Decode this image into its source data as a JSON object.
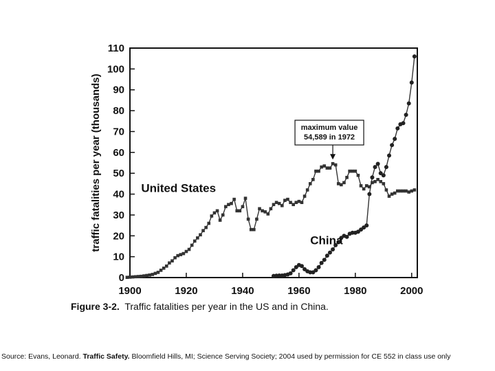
{
  "chart_data": {
    "type": "line",
    "ylabel": "traffic fatalities per year (thousands)",
    "xlim": [
      1900,
      2002
    ],
    "ylim": [
      0,
      110
    ],
    "x_ticks": [
      1900,
      1920,
      1940,
      1960,
      1980,
      2000
    ],
    "y_ticks": [
      0,
      10,
      20,
      30,
      40,
      50,
      60,
      70,
      80,
      90,
      100,
      110
    ],
    "grid": false,
    "series": [
      {
        "name": "United States",
        "marker": "square",
        "x": [
          1899,
          1900,
          1901,
          1902,
          1903,
          1904,
          1905,
          1906,
          1907,
          1908,
          1909,
          1910,
          1911,
          1912,
          1913,
          1914,
          1915,
          1916,
          1917,
          1918,
          1919,
          1920,
          1921,
          1922,
          1923,
          1924,
          1925,
          1926,
          1927,
          1928,
          1929,
          1930,
          1931,
          1932,
          1933,
          1934,
          1935,
          1936,
          1937,
          1938,
          1939,
          1940,
          1941,
          1942,
          1943,
          1944,
          1945,
          1946,
          1947,
          1948,
          1949,
          1950,
          1951,
          1952,
          1953,
          1954,
          1955,
          1956,
          1957,
          1958,
          1959,
          1960,
          1961,
          1962,
          1963,
          1964,
          1965,
          1966,
          1967,
          1968,
          1969,
          1970,
          1971,
          1972,
          1973,
          1974,
          1975,
          1976,
          1977,
          1978,
          1979,
          1980,
          1981,
          1982,
          1983,
          1984,
          1985,
          1986,
          1987,
          1988,
          1989,
          1990,
          1991,
          1992,
          1993,
          1994,
          1995,
          1996,
          1997,
          1998,
          1999,
          2000,
          2001
        ],
        "y": [
          0.1,
          0.2,
          0.3,
          0.4,
          0.5,
          0.6,
          0.8,
          1.0,
          1.2,
          1.5,
          2.0,
          2.5,
          3.5,
          4.5,
          5.5,
          7.0,
          8.0,
          9.5,
          10.5,
          11.0,
          11.5,
          12.5,
          13.5,
          15.5,
          17.5,
          19.0,
          20.5,
          22.5,
          24.0,
          26.0,
          29.5,
          31.0,
          32.0,
          27.5,
          30.0,
          34.0,
          35.0,
          35.5,
          37.5,
          32.0,
          32.0,
          34.0,
          38.0,
          28.0,
          23.0,
          23.0,
          28.0,
          33.0,
          32.0,
          31.5,
          30.5,
          33.0,
          35.0,
          36.0,
          35.5,
          34.5,
          37.0,
          37.5,
          36.0,
          35.0,
          36.0,
          36.5,
          36.0,
          39.0,
          42.0,
          45.0,
          47.0,
          51.0,
          51.0,
          53.0,
          53.5,
          52.5,
          52.5,
          54.6,
          54.0,
          45.0,
          44.5,
          45.5,
          48.0,
          51.0,
          51.0,
          51.0,
          49.0,
          44.0,
          42.5,
          44.0,
          43.5,
          45.5,
          46.0,
          47.0,
          46.0,
          45.0,
          42.0,
          39.0,
          40.0,
          40.5,
          41.5,
          41.5,
          41.5,
          41.5,
          41.0,
          41.5,
          42.0
        ]
      },
      {
        "name": "China",
        "marker": "circle",
        "x": [
          1951,
          1952,
          1953,
          1954,
          1955,
          1956,
          1957,
          1958,
          1959,
          1960,
          1961,
          1962,
          1963,
          1964,
          1965,
          1966,
          1967,
          1968,
          1969,
          1970,
          1971,
          1972,
          1973,
          1974,
          1975,
          1976,
          1977,
          1978,
          1979,
          1980,
          1981,
          1982,
          1983,
          1984,
          1985,
          1986,
          1987,
          1988,
          1989,
          1990,
          1991,
          1992,
          1993,
          1994,
          1995,
          1996,
          1997,
          1998,
          1999,
          2000,
          2001
        ],
        "y": [
          0.8,
          0.9,
          1.0,
          1.0,
          1.2,
          1.5,
          2.0,
          3.5,
          5.0,
          6.0,
          5.5,
          4.0,
          3.0,
          2.5,
          2.5,
          3.5,
          5.0,
          7.0,
          8.5,
          10.5,
          12.0,
          13.5,
          15.5,
          17.0,
          19.0,
          20.0,
          19.5,
          21.0,
          21.5,
          21.5,
          22.0,
          23.0,
          24.0,
          25.0,
          40.0,
          48.0,
          53.0,
          54.5,
          50.0,
          49.0,
          53.0,
          58.5,
          63.5,
          66.5,
          71.5,
          73.5,
          74.0,
          78.0,
          83.5,
          93.5,
          106.0
        ]
      }
    ],
    "annotations": [
      {
        "lines": [
          "maximum value",
          "54,589 in 1972"
        ],
        "arrow_x": 1972,
        "arrow_y": 54.6
      }
    ],
    "series_labels": [
      {
        "text": "United States",
        "x": 1904,
        "y": 41
      },
      {
        "text": "China",
        "x": 1964,
        "y": 16
      }
    ]
  },
  "caption": {
    "figure": "Figure 3-2.",
    "text": "Traffic fatalities per year in the US and in China."
  },
  "source": {
    "prefix": "Source: Evans, Leonard. ",
    "title": "Traffic Safety.",
    "rest": " Bloomfield Hills, MI; Science Serving Society; 2004 used by permission for CE 552 in class use only"
  }
}
